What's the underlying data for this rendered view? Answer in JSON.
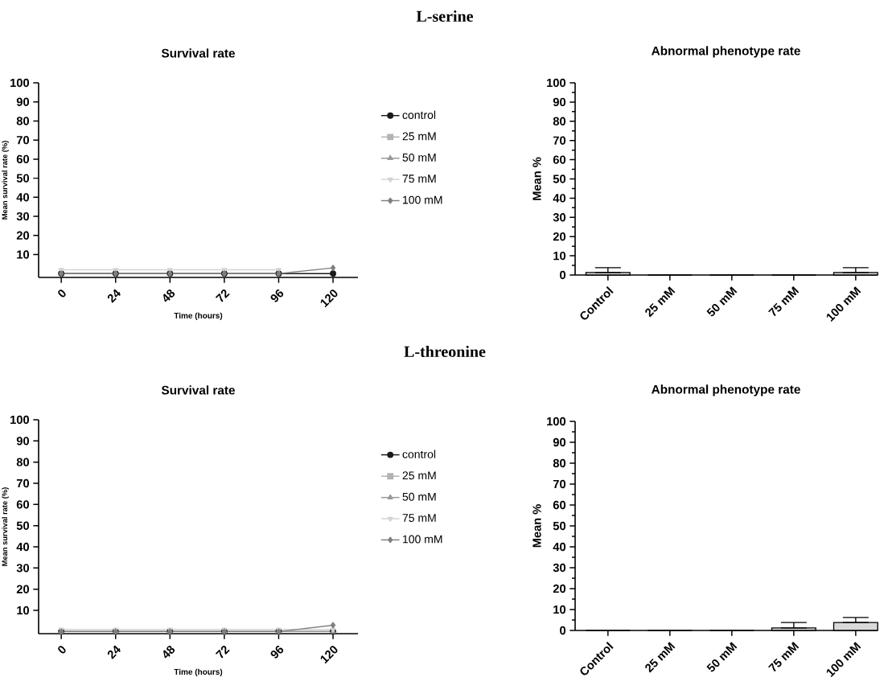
{
  "chart_data": [
    {
      "type": "line",
      "title": "Survival rate",
      "xlabel": "Time (hours)",
      "ylabel": "Mean survival rate (%)",
      "annotations": [
        "L-serine"
      ],
      "legend": "right",
      "x": [
        0,
        24,
        48,
        72,
        96,
        120
      ],
      "xlim": [
        -10,
        131
      ],
      "xticks": [
        0,
        24,
        48,
        72,
        96,
        120
      ],
      "ylim": [
        -2,
        100
      ],
      "yticks": [
        10,
        20,
        30,
        40,
        50,
        60,
        70,
        80,
        90,
        100
      ],
      "series": [
        {
          "name": "control",
          "color": "#1a1a1a",
          "marker": "circle",
          "values": [
            0,
            0,
            0,
            0,
            0,
            0
          ]
        },
        {
          "name": "25 mM",
          "color": "#b3b3b3",
          "marker": "square",
          "values": [
            null,
            null,
            null,
            null,
            null,
            null
          ]
        },
        {
          "name": "50 mM",
          "color": "#999999",
          "marker": "triangle",
          "values": [
            null,
            null,
            null,
            null,
            null,
            null
          ]
        },
        {
          "name": "75 mM",
          "color": "#d4d4d4",
          "marker": "triangle-down",
          "values": [
            2,
            2,
            2,
            2,
            2,
            null
          ]
        },
        {
          "name": "100 mM",
          "color": "#808080",
          "marker": "diamond",
          "values": [
            0,
            0,
            0,
            0,
            0,
            3
          ]
        }
      ]
    },
    {
      "type": "bar",
      "title": "Abnormal phenotype rate",
      "ylabel": "Mean %",
      "categories": [
        "Control",
        "25 mM",
        "50 mM",
        "75 mM",
        "100 mM"
      ],
      "values": [
        1.3,
        0,
        0,
        0,
        1.3
      ],
      "errors": [
        [
          1.3,
          3.8
        ],
        null,
        null,
        null,
        [
          1.3,
          3.8
        ]
      ],
      "color": "#d9d9d9",
      "ylim": [
        0,
        100
      ],
      "yticks": [
        0,
        10,
        20,
        30,
        40,
        50,
        60,
        70,
        80,
        90,
        100
      ]
    },
    {
      "type": "line",
      "title": "Survival rate",
      "xlabel": "Time (hours)",
      "ylabel": "Mean survival rate (%)",
      "annotations": [
        "L-threonine"
      ],
      "legend": "right",
      "x": [
        0,
        24,
        48,
        72,
        96,
        120
      ],
      "xlim": [
        -10,
        131
      ],
      "xticks": [
        0,
        24,
        48,
        72,
        96,
        120
      ],
      "ylim": [
        -1,
        100
      ],
      "yticks": [
        10,
        20,
        30,
        40,
        50,
        60,
        70,
        80,
        90,
        100
      ],
      "series": [
        {
          "name": "control",
          "color": "#1a1a1a",
          "marker": "circle",
          "values": [
            0,
            0,
            0,
            0,
            0,
            0
          ]
        },
        {
          "name": "25 mM",
          "color": "#b3b3b3",
          "marker": "square",
          "values": [
            null,
            null,
            null,
            null,
            null,
            null
          ]
        },
        {
          "name": "50 mM",
          "color": "#999999",
          "marker": "triangle",
          "values": [
            0,
            0,
            0,
            0,
            0,
            0
          ]
        },
        {
          "name": "75 mM",
          "color": "#d4d4d4",
          "marker": "triangle-down",
          "values": [
            1,
            1,
            1,
            1,
            1,
            1
          ]
        },
        {
          "name": "100 mM",
          "color": "#808080",
          "marker": "diamond",
          "values": [
            0,
            0,
            0,
            0,
            0,
            3
          ]
        }
      ]
    },
    {
      "type": "bar",
      "title": "Abnormal phenotype rate",
      "ylabel": "Mean %",
      "categories": [
        "Control",
        "25 mM",
        "50 mM",
        "75 mM",
        "100 mM"
      ],
      "values": [
        0,
        0,
        0,
        1.2,
        3.8
      ],
      "errors": [
        null,
        null,
        null,
        [
          1.2,
          3.8
        ],
        [
          3.8,
          6.2
        ]
      ],
      "color": "#d9d9d9",
      "ylim": [
        0,
        100
      ],
      "yticks": [
        0,
        10,
        20,
        30,
        40,
        50,
        60,
        70,
        80,
        90,
        100
      ]
    }
  ]
}
